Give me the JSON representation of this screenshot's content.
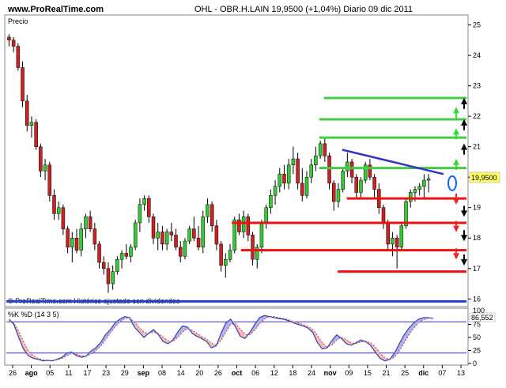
{
  "header": {
    "site": "www.ProRealTime.com",
    "title": "OHL - OBR.H.LAIN   19,9500 (+1,04%)   Diario  09 dic 2011"
  },
  "price_panel": {
    "label": "Precio",
    "footer": "© ProRealTime.com  Histórico ajustado con dividendos",
    "last_price_label": "19,9500"
  },
  "stoch_panel": {
    "label": "%K %D (14 3 5)",
    "last_value_label": "86,552",
    "axis_top_label": "100"
  },
  "colors": {
    "up_candle": "#33cc33",
    "down_candle": "#cc2222",
    "support": "#ee1111",
    "resistance": "#44cc44",
    "trendline": "#3333cc",
    "baseline": "#1f3fcc",
    "stoch_k": "#3344aa",
    "stoch_d": "#cc4444",
    "stoch_fill_up": "#b0b0ee",
    "stoch_fill_down": "#f2bcbc",
    "stoch_levels": "#3333cc",
    "marker": "#1166ee"
  },
  "chart_data": [
    {
      "type": "candlestick",
      "title": "OHL - OBR.H.LAIN",
      "ylim": [
        15.8,
        25.3
      ],
      "yticks": [
        "16",
        "17",
        "18",
        "19",
        "20",
        "21",
        "22",
        "23",
        "24",
        "25"
      ],
      "xticks": [
        "26",
        "ago",
        "05",
        "11",
        "17",
        "23",
        "29",
        "sep",
        "08",
        "14",
        "20",
        "26",
        "oct",
        "06",
        "12",
        "18",
        "24",
        "nov",
        "09",
        "15",
        "21",
        "25",
        "dic",
        "07",
        "13"
      ],
      "ohlc": [
        [
          24.6,
          24.7,
          24.3,
          24.5
        ],
        [
          24.5,
          24.6,
          24.1,
          24.3
        ],
        [
          24.3,
          24.4,
          23.5,
          23.6
        ],
        [
          23.6,
          23.8,
          22.3,
          22.5
        ],
        [
          22.5,
          22.7,
          21.5,
          21.7
        ],
        [
          21.7,
          22.0,
          21.3,
          21.8
        ],
        [
          21.8,
          21.9,
          20.9,
          21.0
        ],
        [
          21.0,
          21.1,
          20.0,
          20.2
        ],
        [
          20.2,
          20.6,
          19.9,
          20.4
        ],
        [
          20.4,
          20.5,
          19.2,
          19.4
        ],
        [
          19.4,
          19.6,
          18.6,
          18.8
        ],
        [
          18.8,
          19.2,
          18.6,
          19.0
        ],
        [
          19.0,
          19.1,
          18.1,
          18.3
        ],
        [
          18.3,
          18.4,
          17.5,
          17.7
        ],
        [
          17.7,
          18.2,
          17.2,
          18.0
        ],
        [
          18.0,
          18.3,
          17.5,
          17.6
        ],
        [
          17.6,
          18.5,
          17.4,
          18.3
        ],
        [
          18.3,
          18.8,
          18.0,
          18.7
        ],
        [
          18.7,
          18.9,
          18.2,
          18.3
        ],
        [
          18.3,
          18.5,
          17.6,
          17.8
        ],
        [
          17.8,
          17.9,
          17.0,
          17.2
        ],
        [
          17.2,
          17.4,
          16.8,
          17.0
        ],
        [
          17.0,
          17.2,
          16.2,
          16.5
        ],
        [
          16.5,
          17.1,
          16.3,
          16.9
        ],
        [
          16.9,
          17.4,
          16.8,
          17.3
        ],
        [
          17.3,
          17.6,
          17.0,
          17.5
        ],
        [
          17.5,
          17.8,
          17.3,
          17.4
        ],
        [
          17.4,
          17.8,
          17.2,
          17.7
        ],
        [
          17.7,
          18.6,
          17.6,
          18.5
        ],
        [
          18.5,
          19.3,
          18.2,
          19.1
        ],
        [
          19.1,
          19.4,
          18.9,
          19.3
        ],
        [
          19.3,
          19.4,
          18.5,
          18.7
        ],
        [
          18.7,
          18.8,
          17.8,
          18.0
        ],
        [
          18.0,
          18.5,
          17.6,
          18.2
        ],
        [
          18.2,
          18.4,
          17.6,
          17.8
        ],
        [
          17.8,
          18.3,
          17.6,
          18.2
        ],
        [
          18.2,
          18.5,
          17.9,
          18.1
        ],
        [
          18.1,
          18.3,
          17.6,
          17.7
        ],
        [
          17.7,
          17.9,
          17.2,
          17.4
        ],
        [
          17.4,
          18.0,
          17.3,
          17.9
        ],
        [
          17.9,
          18.4,
          17.8,
          18.3
        ],
        [
          18.3,
          18.7,
          17.9,
          18.0
        ],
        [
          18.0,
          18.4,
          17.6,
          17.7
        ],
        [
          17.7,
          18.9,
          17.5,
          18.7
        ],
        [
          18.7,
          19.3,
          18.5,
          19.1
        ],
        [
          19.1,
          19.2,
          18.2,
          18.4
        ],
        [
          18.4,
          18.6,
          17.6,
          17.8
        ],
        [
          17.8,
          17.9,
          16.9,
          17.1
        ],
        [
          17.1,
          17.5,
          16.7,
          17.3
        ],
        [
          17.3,
          17.8,
          17.2,
          17.6
        ],
        [
          17.6,
          18.7,
          17.5,
          18.6
        ],
        [
          18.6,
          18.8,
          18.1,
          18.2
        ],
        [
          18.2,
          18.9,
          18.0,
          18.7
        ],
        [
          18.7,
          18.8,
          17.9,
          18.1
        ],
        [
          18.1,
          18.2,
          17.1,
          17.3
        ],
        [
          17.3,
          17.8,
          17.0,
          17.7
        ],
        [
          17.7,
          18.6,
          17.5,
          18.5
        ],
        [
          18.5,
          19.1,
          18.3,
          19.0
        ],
        [
          19.0,
          19.6,
          18.8,
          19.4
        ],
        [
          19.4,
          19.9,
          19.1,
          19.7
        ],
        [
          19.7,
          20.3,
          19.5,
          20.1
        ],
        [
          20.1,
          20.4,
          19.6,
          19.8
        ],
        [
          19.8,
          20.6,
          19.6,
          20.4
        ],
        [
          20.4,
          21.0,
          20.1,
          20.6
        ],
        [
          20.6,
          20.8,
          19.6,
          19.8
        ],
        [
          19.8,
          20.3,
          19.2,
          19.4
        ],
        [
          19.4,
          20.2,
          19.3,
          20.0
        ],
        [
          20.0,
          20.6,
          19.8,
          20.4
        ],
        [
          20.4,
          21.0,
          20.2,
          20.7
        ],
        [
          20.7,
          21.2,
          20.6,
          21.1
        ],
        [
          21.1,
          21.3,
          20.5,
          20.7
        ],
        [
          20.7,
          20.8,
          19.6,
          19.8
        ],
        [
          19.8,
          19.9,
          18.9,
          19.2
        ],
        [
          19.2,
          19.8,
          19.0,
          19.6
        ],
        [
          19.6,
          20.3,
          19.5,
          20.2
        ],
        [
          20.2,
          20.8,
          20.0,
          20.5
        ],
        [
          20.5,
          20.6,
          19.8,
          20.0
        ],
        [
          20.0,
          20.1,
          19.3,
          19.5
        ],
        [
          19.5,
          20.0,
          19.3,
          19.9
        ],
        [
          19.9,
          20.5,
          19.8,
          20.4
        ],
        [
          20.4,
          20.6,
          19.9,
          20.0
        ],
        [
          20.0,
          20.1,
          19.3,
          19.6
        ],
        [
          19.6,
          19.8,
          18.8,
          19.0
        ],
        [
          19.0,
          19.1,
          18.3,
          18.5
        ],
        [
          18.5,
          18.6,
          17.6,
          17.8
        ],
        [
          17.8,
          18.2,
          17.4,
          18.0
        ],
        [
          18.0,
          18.1,
          17.0,
          17.7
        ],
        [
          17.7,
          18.5,
          17.6,
          18.4
        ],
        [
          18.4,
          19.3,
          18.3,
          19.2
        ],
        [
          19.2,
          19.6,
          19.0,
          19.5
        ],
        [
          19.5,
          19.7,
          19.2,
          19.6
        ],
        [
          19.6,
          19.8,
          19.4,
          19.7
        ],
        [
          19.7,
          20.1,
          19.3,
          19.9
        ],
        [
          19.9,
          20.1,
          19.5,
          19.95
        ]
      ],
      "resistance_levels": [
        22.6,
        21.9,
        21.3,
        20.3
      ],
      "support_levels": [
        19.3,
        18.5,
        17.6,
        16.9
      ],
      "trendline_from": 20.9,
      "trendline_to": 20.1,
      "circle_marker_value": 19.8,
      "baseline_value": 15.92,
      "arrows_up_green": [
        20.5,
        21.5,
        22.2
      ],
      "arrows_up_black": [
        21.0,
        21.8,
        22.5
      ],
      "arrows_down_red": [
        19.2,
        18.3,
        17.4
      ],
      "arrows_down_black": [
        18.8,
        18.0,
        17.2
      ]
    },
    {
      "type": "line",
      "title": "%K %D (14 3 5)",
      "ylim": [
        0,
        100
      ],
      "yticks": [
        "0",
        "25",
        "50",
        "75"
      ],
      "levels": [
        20,
        80
      ],
      "series": [
        {
          "name": "%K",
          "values": [
            85,
            75,
            50,
            28,
            15,
            10,
            8,
            5,
            6,
            5,
            8,
            12,
            20,
            22,
            15,
            12,
            14,
            24,
            30,
            40,
            55,
            65,
            78,
            85,
            90,
            88,
            70,
            60,
            50,
            58,
            65,
            55,
            42,
            38,
            45,
            60,
            72,
            70,
            58,
            52,
            48,
            42,
            30,
            34,
            58,
            78,
            85,
            70,
            52,
            48,
            60,
            75,
            88,
            92,
            90,
            88,
            86,
            85,
            82,
            78,
            75,
            72,
            68,
            60,
            40,
            28,
            30,
            44,
            55,
            48,
            38,
            35,
            40,
            45,
            42,
            35,
            22,
            10,
            5,
            8,
            20,
            38,
            55,
            68,
            78,
            85,
            88,
            88,
            86.55
          ]
        },
        {
          "name": "%D",
          "values": [
            80,
            78,
            62,
            42,
            25,
            15,
            10,
            7,
            6,
            6,
            7,
            10,
            15,
            19,
            18,
            15,
            14,
            18,
            24,
            33,
            45,
            58,
            70,
            80,
            86,
            88,
            80,
            70,
            60,
            58,
            60,
            58,
            50,
            44,
            42,
            50,
            60,
            67,
            64,
            58,
            52,
            47,
            39,
            35,
            44,
            60,
            75,
            77,
            66,
            56,
            55,
            64,
            76,
            85,
            90,
            90,
            88,
            86,
            84,
            81,
            78,
            75,
            71,
            66,
            54,
            40,
            32,
            35,
            45,
            50,
            46,
            40,
            38,
            41,
            43,
            40,
            32,
            20,
            11,
            8,
            12,
            24,
            40,
            55,
            68,
            78,
            84,
            87,
            87
          ]
        }
      ]
    }
  ]
}
